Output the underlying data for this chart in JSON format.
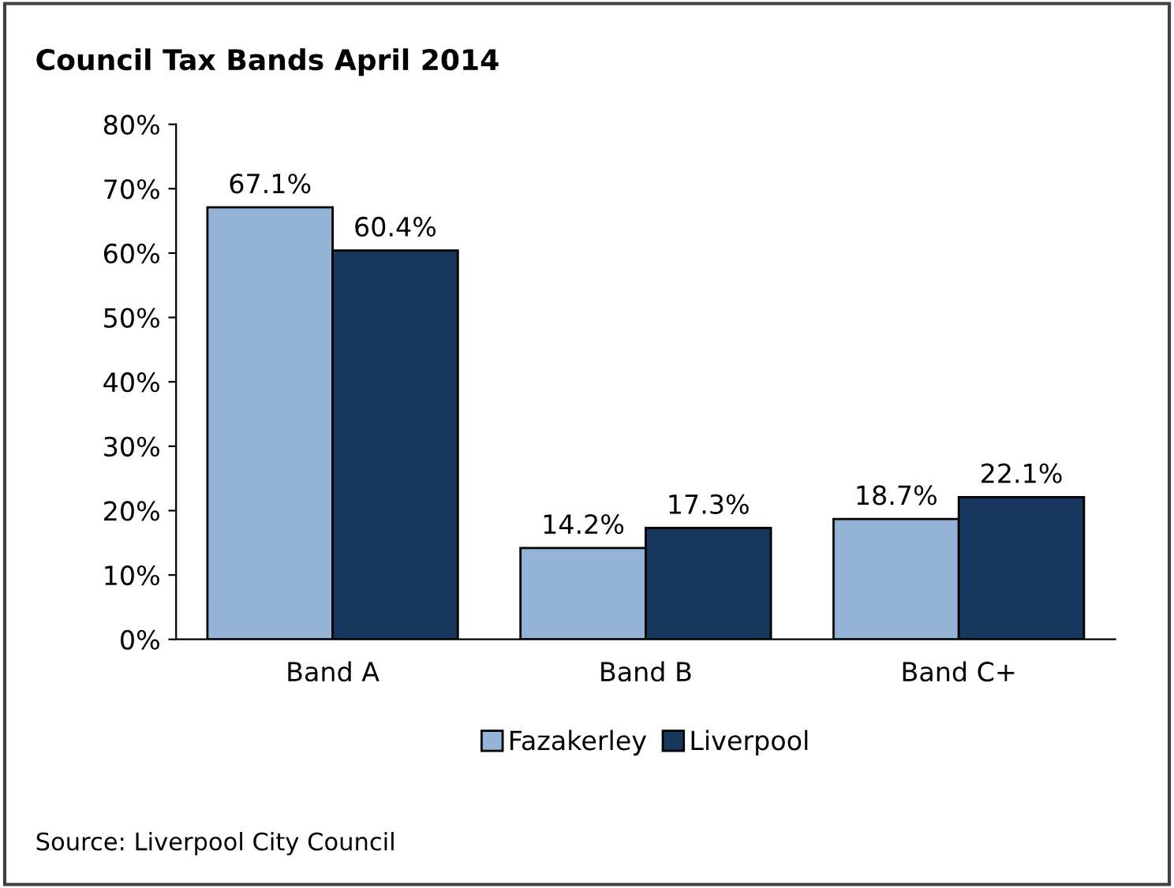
{
  "chart_data": {
    "type": "bar",
    "title": "Council Tax Bands April 2014",
    "categories": [
      "Band A",
      "Band B",
      "Band C+"
    ],
    "series": [
      {
        "name": "Fazakerley",
        "color": "#95b3d7",
        "values": [
          67.1,
          14.2,
          18.7
        ],
        "value_labels": [
          "67.1%",
          "14.2%",
          "18.7%"
        ]
      },
      {
        "name": "Liverpool",
        "color": "#17375e",
        "values": [
          60.4,
          17.3,
          22.1
        ],
        "value_labels": [
          "60.4%",
          "17.3%",
          "22.1%"
        ]
      }
    ],
    "ylim": [
      0,
      80
    ],
    "yticks": [
      {
        "value": 0,
        "label": "0%"
      },
      {
        "value": 10,
        "label": "10%"
      },
      {
        "value": 20,
        "label": "20%"
      },
      {
        "value": 30,
        "label": "30%"
      },
      {
        "value": 40,
        "label": "40%"
      },
      {
        "value": 50,
        "label": "50%"
      },
      {
        "value": 60,
        "label": "60%"
      },
      {
        "value": 70,
        "label": "70%"
      },
      {
        "value": 80,
        "label": "80%"
      }
    ],
    "legend": "bottom",
    "annotations": [
      "Source: Liverpool City Council"
    ]
  }
}
